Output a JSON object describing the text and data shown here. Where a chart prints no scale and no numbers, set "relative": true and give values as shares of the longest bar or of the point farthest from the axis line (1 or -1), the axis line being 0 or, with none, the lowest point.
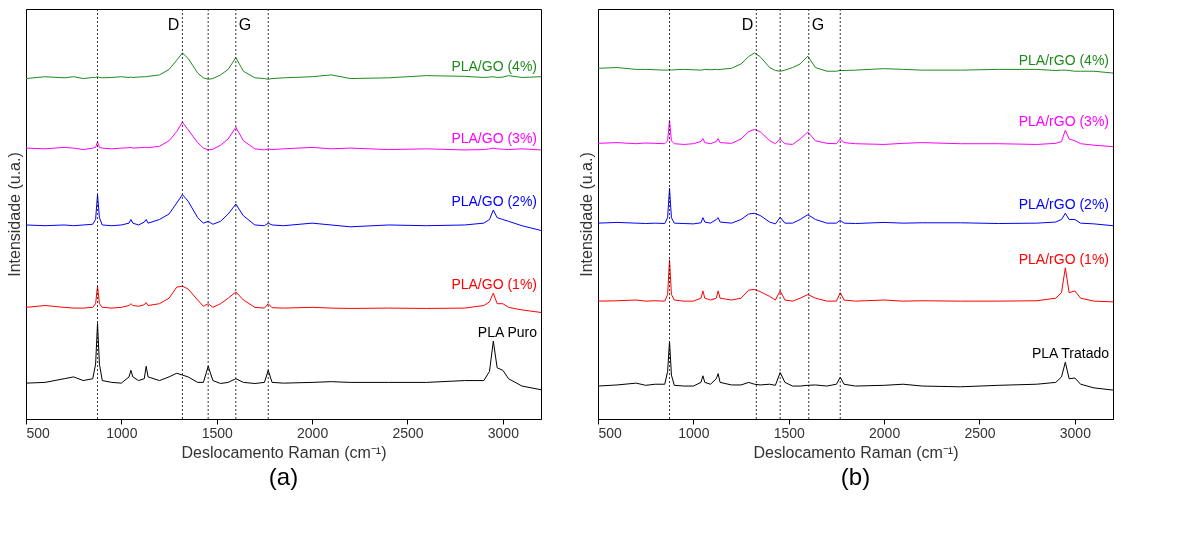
{
  "chart_data": [
    {
      "type": "line",
      "title": "(a)",
      "xlabel": "Deslocamento Raman (cm⁻¹)",
      "ylabel": "Intensidade (u.a.)",
      "relative": true,
      "xlim": [
        500,
        3200
      ],
      "xticks": [
        500,
        1000,
        1500,
        2000,
        2500,
        3000
      ],
      "x": [
        500,
        600,
        700,
        750,
        800,
        850,
        865,
        875,
        885,
        900,
        950,
        1000,
        1040,
        1050,
        1060,
        1090,
        1120,
        1130,
        1140,
        1200,
        1250,
        1290,
        1320,
        1350,
        1400,
        1430,
        1455,
        1480,
        1520,
        1560,
        1600,
        1640,
        1700,
        1750,
        1770,
        1790,
        1850,
        2000,
        2100,
        2200,
        2400,
        2600,
        2800,
        2900,
        2930,
        2950,
        2970,
        3000,
        3030,
        3100,
        3200
      ],
      "series": [
        {
          "name": "PLA/GO (4%)",
          "color": "#1e8a1e",
          "values": [
            0.93,
            0.935,
            0.932,
            0.935,
            0.93,
            0.933,
            0.933,
            0.935,
            0.933,
            0.932,
            0.933,
            0.935,
            0.933,
            0.934,
            0.933,
            0.934,
            0.935,
            0.935,
            0.936,
            0.94,
            0.955,
            0.98,
            1.0,
            0.985,
            0.945,
            0.932,
            0.928,
            0.93,
            0.94,
            0.955,
            0.987,
            0.95,
            0.932,
            0.93,
            0.928,
            0.93,
            0.932,
            0.935,
            0.94,
            0.93,
            0.932,
            0.938,
            0.936,
            0.933,
            0.934,
            0.935,
            0.933,
            0.934,
            0.938,
            0.933,
            0.935
          ]
        },
        {
          "name": "PLA/GO (3%)",
          "color": "#ff00ff",
          "values": [
            0.74,
            0.738,
            0.742,
            0.74,
            0.736,
            0.74,
            0.742,
            0.757,
            0.742,
            0.74,
            0.738,
            0.74,
            0.741,
            0.742,
            0.74,
            0.741,
            0.742,
            0.742,
            0.741,
            0.745,
            0.76,
            0.785,
            0.811,
            0.79,
            0.755,
            0.74,
            0.735,
            0.737,
            0.748,
            0.765,
            0.797,
            0.76,
            0.738,
            0.735,
            0.738,
            0.736,
            0.738,
            0.742,
            0.738,
            0.74,
            0.736,
            0.738,
            0.735,
            0.736,
            0.738,
            0.74,
            0.738,
            0.737,
            0.736,
            0.738,
            0.735
          ]
        },
        {
          "name": "PLA/GO (2%)",
          "color": "#0000ff",
          "values": [
            0.53,
            0.528,
            0.53,
            0.528,
            0.53,
            0.532,
            0.545,
            0.613,
            0.55,
            0.53,
            0.528,
            0.53,
            0.535,
            0.545,
            0.535,
            0.53,
            0.538,
            0.545,
            0.535,
            0.545,
            0.56,
            0.59,
            0.613,
            0.595,
            0.55,
            0.535,
            0.54,
            0.532,
            0.54,
            0.56,
            0.587,
            0.555,
            0.53,
            0.528,
            0.535,
            0.53,
            0.528,
            0.535,
            0.53,
            0.525,
            0.53,
            0.528,
            0.53,
            0.535,
            0.545,
            0.571,
            0.55,
            0.545,
            0.54,
            0.528,
            0.515
          ]
        },
        {
          "name": "PLA/GO (1%)",
          "color": "#ff0000",
          "values": [
            0.305,
            0.31,
            0.305,
            0.303,
            0.303,
            0.305,
            0.315,
            0.363,
            0.315,
            0.305,
            0.303,
            0.305,
            0.31,
            0.315,
            0.31,
            0.308,
            0.312,
            0.318,
            0.31,
            0.315,
            0.33,
            0.36,
            0.363,
            0.355,
            0.325,
            0.308,
            0.315,
            0.305,
            0.315,
            0.33,
            0.347,
            0.325,
            0.305,
            0.303,
            0.315,
            0.304,
            0.303,
            0.305,
            0.303,
            0.302,
            0.303,
            0.302,
            0.303,
            0.31,
            0.32,
            0.344,
            0.315,
            0.315,
            0.305,
            0.298,
            0.291
          ]
        },
        {
          "name": "PLA Puro",
          "color": "#000000",
          "values": [
            0.098,
            0.1,
            0.11,
            0.115,
            0.105,
            0.11,
            0.15,
            0.261,
            0.15,
            0.105,
            0.1,
            0.098,
            0.115,
            0.133,
            0.115,
            0.105,
            0.11,
            0.144,
            0.115,
            0.105,
            0.115,
            0.125,
            0.12,
            0.115,
            0.1,
            0.1,
            0.144,
            0.105,
            0.097,
            0.1,
            0.11,
            0.1,
            0.097,
            0.1,
            0.133,
            0.1,
            0.098,
            0.1,
            0.102,
            0.1,
            0.1,
            0.1,
            0.105,
            0.105,
            0.13,
            0.213,
            0.14,
            0.133,
            0.11,
            0.09,
            0.08
          ]
        }
      ],
      "ref_lines": [
        {
          "axis": "x",
          "value": 875,
          "line_style": "dotted"
        },
        {
          "axis": "x",
          "value": 1320,
          "label": "D",
          "line_style": "dotted"
        },
        {
          "axis": "x",
          "value": 1455,
          "line_style": "dotted"
        },
        {
          "axis": "x",
          "value": 1600,
          "label": "G",
          "line_style": "dotted"
        },
        {
          "axis": "x",
          "value": 1770,
          "line_style": "dotted"
        }
      ]
    },
    {
      "type": "line",
      "title": "(b)",
      "xlabel": "Deslocamento Raman (cm⁻¹)",
      "ylabel": "Intensidade (u.a.)",
      "relative": true,
      "xlim": [
        500,
        3200
      ],
      "xticks": [
        500,
        1000,
        1500,
        2000,
        2500,
        3000
      ],
      "x": [
        500,
        600,
        700,
        750,
        800,
        850,
        865,
        875,
        885,
        900,
        950,
        1000,
        1040,
        1050,
        1060,
        1090,
        1120,
        1130,
        1140,
        1200,
        1250,
        1290,
        1320,
        1350,
        1400,
        1430,
        1455,
        1480,
        1520,
        1560,
        1600,
        1640,
        1700,
        1750,
        1770,
        1790,
        1850,
        2000,
        2100,
        2200,
        2400,
        2600,
        2800,
        2900,
        2930,
        2950,
        2970,
        3000,
        3030,
        3100,
        3200
      ],
      "series": [
        {
          "name": "PLA/rGO (4%)",
          "color": "#1e8a1e",
          "values": [
            0.958,
            0.96,
            0.955,
            0.955,
            0.954,
            0.953,
            0.953,
            0.955,
            0.953,
            0.954,
            0.955,
            0.954,
            0.953,
            0.954,
            0.955,
            0.954,
            0.955,
            0.954,
            0.955,
            0.958,
            0.97,
            0.99,
            1.0,
            0.99,
            0.96,
            0.952,
            0.95,
            0.953,
            0.96,
            0.97,
            0.991,
            0.96,
            0.95,
            0.95,
            0.952,
            0.952,
            0.953,
            0.957,
            0.955,
            0.953,
            0.953,
            0.955,
            0.955,
            0.952,
            0.953,
            0.953,
            0.952,
            0.95,
            0.95,
            0.95,
            0.945
          ]
        },
        {
          "name": "PLA/rGO (3%)",
          "color": "#ff00ff",
          "values": [
            0.753,
            0.755,
            0.752,
            0.754,
            0.753,
            0.752,
            0.76,
            0.816,
            0.76,
            0.752,
            0.75,
            0.752,
            0.758,
            0.766,
            0.755,
            0.752,
            0.758,
            0.766,
            0.755,
            0.753,
            0.765,
            0.785,
            0.791,
            0.785,
            0.76,
            0.752,
            0.765,
            0.752,
            0.75,
            0.765,
            0.784,
            0.76,
            0.753,
            0.752,
            0.765,
            0.755,
            0.752,
            0.75,
            0.753,
            0.755,
            0.752,
            0.752,
            0.75,
            0.753,
            0.758,
            0.789,
            0.765,
            0.76,
            0.752,
            0.748,
            0.744
          ]
        },
        {
          "name": "PLA/rGO (2%)",
          "color": "#0000ff",
          "values": [
            0.535,
            0.537,
            0.535,
            0.534,
            0.535,
            0.534,
            0.55,
            0.63,
            0.55,
            0.535,
            0.534,
            0.533,
            0.536,
            0.55,
            0.538,
            0.535,
            0.545,
            0.55,
            0.538,
            0.535,
            0.545,
            0.56,
            0.562,
            0.556,
            0.538,
            0.533,
            0.551,
            0.535,
            0.535,
            0.545,
            0.558,
            0.545,
            0.535,
            0.535,
            0.543,
            0.535,
            0.534,
            0.537,
            0.535,
            0.536,
            0.536,
            0.534,
            0.535,
            0.538,
            0.545,
            0.562,
            0.545,
            0.545,
            0.535,
            0.533,
            0.528
          ]
        },
        {
          "name": "PLA/rGO (1%)",
          "color": "#ff0000",
          "values": [
            0.322,
            0.323,
            0.325,
            0.322,
            0.323,
            0.322,
            0.34,
            0.435,
            0.34,
            0.325,
            0.322,
            0.322,
            0.33,
            0.35,
            0.33,
            0.325,
            0.33,
            0.35,
            0.33,
            0.325,
            0.33,
            0.352,
            0.354,
            0.348,
            0.335,
            0.325,
            0.35,
            0.325,
            0.322,
            0.33,
            0.34,
            0.33,
            0.322,
            0.322,
            0.345,
            0.325,
            0.322,
            0.325,
            0.322,
            0.323,
            0.322,
            0.322,
            0.323,
            0.33,
            0.345,
            0.413,
            0.345,
            0.35,
            0.33,
            0.322,
            0.32
          ]
        },
        {
          "name": "PLA Tratado",
          "color": "#000000",
          "values": [
            0.09,
            0.093,
            0.098,
            0.092,
            0.095,
            0.095,
            0.13,
            0.213,
            0.12,
            0.092,
            0.09,
            0.09,
            0.1,
            0.118,
            0.1,
            0.095,
            0.11,
            0.124,
            0.1,
            0.093,
            0.093,
            0.1,
            0.095,
            0.093,
            0.095,
            0.092,
            0.127,
            0.1,
            0.09,
            0.09,
            0.092,
            0.093,
            0.09,
            0.095,
            0.114,
            0.095,
            0.09,
            0.092,
            0.095,
            0.09,
            0.088,
            0.092,
            0.095,
            0.1,
            0.115,
            0.155,
            0.11,
            0.112,
            0.095,
            0.085,
            0.079
          ]
        }
      ],
      "ref_lines": [
        {
          "axis": "x",
          "value": 875,
          "line_style": "dotted"
        },
        {
          "axis": "x",
          "value": 1330,
          "label": "D",
          "line_style": "dotted"
        },
        {
          "axis": "x",
          "value": 1455,
          "line_style": "dotted"
        },
        {
          "axis": "x",
          "value": 1605,
          "label": "G",
          "line_style": "dotted"
        },
        {
          "axis": "x",
          "value": 1770,
          "line_style": "dotted"
        }
      ]
    }
  ]
}
